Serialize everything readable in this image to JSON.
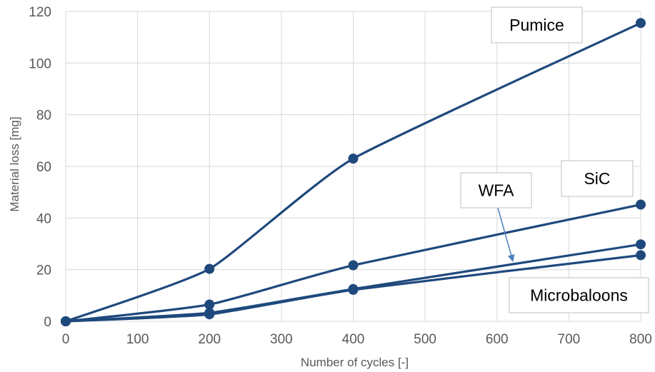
{
  "chart_data": {
    "type": "line",
    "xlabel": "Number of cycles [-]",
    "ylabel": "Material loss [mg]",
    "xlim": [
      0,
      800
    ],
    "ylim": [
      0,
      120
    ],
    "x_ticks": [
      0,
      100,
      200,
      300,
      400,
      500,
      600,
      700,
      800
    ],
    "y_ticks": [
      0,
      20,
      40,
      60,
      80,
      100,
      120
    ],
    "grid": true,
    "series": [
      {
        "name": "Pumice",
        "x": [
          0,
          200,
          400,
          800
        ],
        "y": [
          0,
          20.3,
          63,
          115.5
        ],
        "color": "#1f497d"
      },
      {
        "name": "SiC",
        "x": [
          0,
          200,
          400,
          800
        ],
        "y": [
          0,
          6.5,
          21.7,
          45.2
        ],
        "color": "#1f497d"
      },
      {
        "name": "WFA",
        "x": [
          0,
          200,
          400,
          800
        ],
        "y": [
          0,
          3.3,
          12.5,
          29.8
        ],
        "color": "#1f497d"
      },
      {
        "name": "Microbaloons",
        "x": [
          0,
          200,
          400,
          800
        ],
        "y": [
          0,
          2.7,
          12.2,
          25.6
        ],
        "color": "#1f497d"
      }
    ],
    "annotations": [
      {
        "text": "Pumice",
        "series": "Pumice"
      },
      {
        "text": "SiC",
        "series": "SiC"
      },
      {
        "text": "WFA",
        "series": "WFA",
        "arrow": true
      },
      {
        "text": "Microbaloons",
        "series": "Microbaloons"
      }
    ],
    "arrow_color": "#4f81bd",
    "text_color": "#595959"
  }
}
